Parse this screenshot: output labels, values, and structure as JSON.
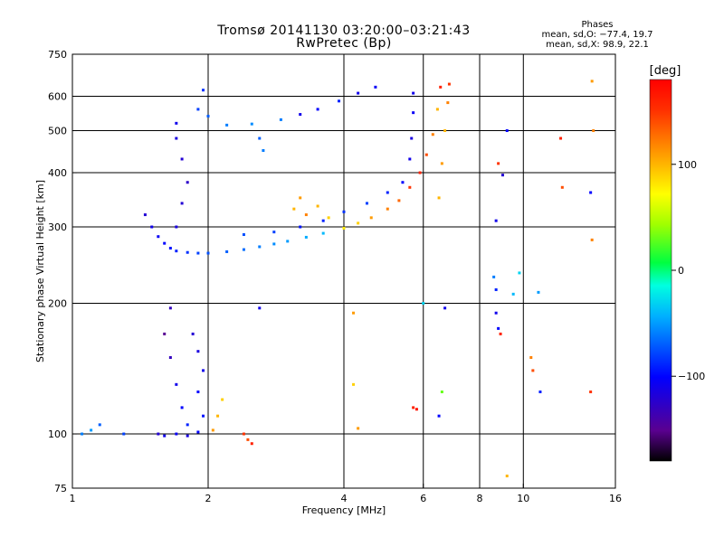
{
  "header": {
    "title_line1": "Tromsø 20141130 03:20:00–03:21:43",
    "title_line2": "RwPretec (Bp)",
    "phases_heading": "Phases",
    "phases_o": "mean, sd,O: −77.4, 19.7",
    "phases_x": "mean, sd,X:  98.9, 22.1"
  },
  "colorbar": {
    "label": "[deg]",
    "ticks": [
      {
        "value": 100,
        "label": "100"
      },
      {
        "value": 0,
        "label": "0"
      },
      {
        "value": -100,
        "label": "−100"
      }
    ],
    "range": [
      -180,
      180
    ]
  },
  "chart_data": {
    "type": "scatter",
    "xlabel": "Frequency [MHz]",
    "ylabel": "Stationary phase Virtual Height [km]",
    "x_scale": "log",
    "y_scale": "log",
    "xlim": [
      1,
      16
    ],
    "ylim": [
      75,
      750
    ],
    "grid": true,
    "x_ticks": [
      {
        "value": 1,
        "label": "1"
      },
      {
        "value": 2,
        "label": "2"
      },
      {
        "value": 4,
        "label": "4"
      },
      {
        "value": 6,
        "label": "6"
      },
      {
        "value": 8,
        "label": "8"
      },
      {
        "value": 10,
        "label": "10"
      },
      {
        "value": 16,
        "label": "16"
      }
    ],
    "y_ticks": [
      {
        "value": 75,
        "label": "75"
      },
      {
        "value": 100,
        "label": "100"
      },
      {
        "value": 200,
        "label": "200"
      },
      {
        "value": 300,
        "label": "300"
      },
      {
        "value": 400,
        "label": "400"
      },
      {
        "value": 500,
        "label": "500"
      },
      {
        "value": 600,
        "label": "600"
      },
      {
        "value": 750,
        "label": "750"
      }
    ],
    "x_grid": [
      2,
      4,
      6,
      8,
      10
    ],
    "y_grid": [
      100,
      200,
      300,
      400,
      500,
      600
    ],
    "points": [
      {
        "x": 1.45,
        "y": 320,
        "phase": -120
      },
      {
        "x": 1.5,
        "y": 300,
        "phase": -110
      },
      {
        "x": 1.55,
        "y": 285,
        "phase": -105
      },
      {
        "x": 1.6,
        "y": 275,
        "phase": -100
      },
      {
        "x": 1.65,
        "y": 268,
        "phase": -95
      },
      {
        "x": 1.7,
        "y": 264,
        "phase": -90
      },
      {
        "x": 1.8,
        "y": 262,
        "phase": -85
      },
      {
        "x": 1.9,
        "y": 261,
        "phase": -80
      },
      {
        "x": 2.0,
        "y": 261,
        "phase": -75
      },
      {
        "x": 2.2,
        "y": 263,
        "phase": -70
      },
      {
        "x": 2.4,
        "y": 266,
        "phase": -65
      },
      {
        "x": 2.6,
        "y": 270,
        "phase": -60
      },
      {
        "x": 2.8,
        "y": 274,
        "phase": -55
      },
      {
        "x": 3.0,
        "y": 278,
        "phase": -50
      },
      {
        "x": 3.3,
        "y": 284,
        "phase": -45
      },
      {
        "x": 3.6,
        "y": 290,
        "phase": -40
      },
      {
        "x": 4.0,
        "y": 298,
        "phase": 80
      },
      {
        "x": 4.3,
        "y": 306,
        "phase": 90
      },
      {
        "x": 4.6,
        "y": 315,
        "phase": 110
      },
      {
        "x": 5.0,
        "y": 330,
        "phase": 120
      },
      {
        "x": 5.3,
        "y": 345,
        "phase": 130
      },
      {
        "x": 5.6,
        "y": 370,
        "phase": 150
      },
      {
        "x": 5.9,
        "y": 400,
        "phase": 160
      },
      {
        "x": 6.1,
        "y": 440,
        "phase": 140
      },
      {
        "x": 6.3,
        "y": 490,
        "phase": 120
      },
      {
        "x": 6.45,
        "y": 560,
        "phase": 100
      },
      {
        "x": 6.55,
        "y": 630,
        "phase": 160
      },
      {
        "x": 1.7,
        "y": 300,
        "phase": -115
      },
      {
        "x": 1.75,
        "y": 340,
        "phase": -120
      },
      {
        "x": 1.8,
        "y": 380,
        "phase": -125
      },
      {
        "x": 1.75,
        "y": 430,
        "phase": -120
      },
      {
        "x": 1.7,
        "y": 480,
        "phase": -115
      },
      {
        "x": 1.7,
        "y": 520,
        "phase": -110
      },
      {
        "x": 1.9,
        "y": 560,
        "phase": -80
      },
      {
        "x": 1.95,
        "y": 620,
        "phase": -85
      },
      {
        "x": 2.0,
        "y": 540,
        "phase": -70
      },
      {
        "x": 2.2,
        "y": 515,
        "phase": -60
      },
      {
        "x": 2.5,
        "y": 518,
        "phase": -55
      },
      {
        "x": 2.9,
        "y": 530,
        "phase": -60
      },
      {
        "x": 3.2,
        "y": 545,
        "phase": -110
      },
      {
        "x": 3.5,
        "y": 560,
        "phase": -100
      },
      {
        "x": 3.9,
        "y": 585,
        "phase": -90
      },
      {
        "x": 4.3,
        "y": 610,
        "phase": -110
      },
      {
        "x": 4.7,
        "y": 630,
        "phase": -105
      },
      {
        "x": 5.7,
        "y": 610,
        "phase": -110
      },
      {
        "x": 5.7,
        "y": 550,
        "phase": -105
      },
      {
        "x": 5.65,
        "y": 480,
        "phase": -115
      },
      {
        "x": 5.6,
        "y": 430,
        "phase": -110
      },
      {
        "x": 5.4,
        "y": 380,
        "phase": -100
      },
      {
        "x": 5.0,
        "y": 360,
        "phase": -90
      },
      {
        "x": 4.5,
        "y": 340,
        "phase": -80
      },
      {
        "x": 4.0,
        "y": 325,
        "phase": -85
      },
      {
        "x": 3.6,
        "y": 310,
        "phase": -90
      },
      {
        "x": 3.2,
        "y": 300,
        "phase": -95
      },
      {
        "x": 2.8,
        "y": 292,
        "phase": -80
      },
      {
        "x": 2.4,
        "y": 288,
        "phase": -75
      },
      {
        "x": 3.1,
        "y": 330,
        "phase": 100
      },
      {
        "x": 3.2,
        "y": 350,
        "phase": 110
      },
      {
        "x": 3.3,
        "y": 320,
        "phase": 120
      },
      {
        "x": 3.5,
        "y": 335,
        "phase": 100
      },
      {
        "x": 3.7,
        "y": 315,
        "phase": 90
      },
      {
        "x": 6.5,
        "y": 350,
        "phase": 100
      },
      {
        "x": 6.6,
        "y": 420,
        "phase": 110
      },
      {
        "x": 6.7,
        "y": 500,
        "phase": 100
      },
      {
        "x": 6.8,
        "y": 580,
        "phase": 120
      },
      {
        "x": 6.85,
        "y": 640,
        "phase": 150
      },
      {
        "x": 2.6,
        "y": 480,
        "phase": -70
      },
      {
        "x": 2.65,
        "y": 450,
        "phase": -60
      },
      {
        "x": 1.6,
        "y": 170,
        "phase": -150
      },
      {
        "x": 1.65,
        "y": 150,
        "phase": -130
      },
      {
        "x": 1.7,
        "y": 130,
        "phase": -110
      },
      {
        "x": 1.75,
        "y": 115,
        "phase": -100
      },
      {
        "x": 1.8,
        "y": 105,
        "phase": -90
      },
      {
        "x": 1.85,
        "y": 170,
        "phase": -120
      },
      {
        "x": 1.9,
        "y": 155,
        "phase": -115
      },
      {
        "x": 1.95,
        "y": 140,
        "phase": -110
      },
      {
        "x": 1.9,
        "y": 125,
        "phase": -100
      },
      {
        "x": 1.95,
        "y": 110,
        "phase": -95
      },
      {
        "x": 1.65,
        "y": 195,
        "phase": -130
      },
      {
        "x": 1.55,
        "y": 100,
        "phase": -120
      },
      {
        "x": 1.6,
        "y": 99,
        "phase": -110
      },
      {
        "x": 1.7,
        "y": 100,
        "phase": -105
      },
      {
        "x": 1.8,
        "y": 99,
        "phase": -115
      },
      {
        "x": 1.9,
        "y": 101,
        "phase": -100
      },
      {
        "x": 1.05,
        "y": 100,
        "phase": -60
      },
      {
        "x": 1.1,
        "y": 102,
        "phase": -50
      },
      {
        "x": 1.15,
        "y": 105,
        "phase": -70
      },
      {
        "x": 1.3,
        "y": 100,
        "phase": -80
      },
      {
        "x": 2.4,
        "y": 100,
        "phase": 150
      },
      {
        "x": 2.45,
        "y": 97,
        "phase": 140
      },
      {
        "x": 2.5,
        "y": 95,
        "phase": 160
      },
      {
        "x": 2.05,
        "y": 102,
        "phase": 110
      },
      {
        "x": 2.1,
        "y": 110,
        "phase": 100
      },
      {
        "x": 2.15,
        "y": 120,
        "phase": 90
      },
      {
        "x": 2.6,
        "y": 195,
        "phase": -110
      },
      {
        "x": 4.2,
        "y": 190,
        "phase": 110
      },
      {
        "x": 4.2,
        "y": 130,
        "phase": 90
      },
      {
        "x": 4.3,
        "y": 103,
        "phase": 110
      },
      {
        "x": 5.7,
        "y": 115,
        "phase": 160
      },
      {
        "x": 5.8,
        "y": 114,
        "phase": 170
      },
      {
        "x": 6.0,
        "y": 200,
        "phase": -30
      },
      {
        "x": 6.6,
        "y": 125,
        "phase": 30
      },
      {
        "x": 6.7,
        "y": 195,
        "phase": -110
      },
      {
        "x": 6.5,
        "y": 110,
        "phase": -100
      },
      {
        "x": 8.7,
        "y": 190,
        "phase": -110
      },
      {
        "x": 8.8,
        "y": 175,
        "phase": -100
      },
      {
        "x": 8.9,
        "y": 170,
        "phase": 160
      },
      {
        "x": 8.6,
        "y": 230,
        "phase": -60
      },
      {
        "x": 8.7,
        "y": 215,
        "phase": -90
      },
      {
        "x": 8.7,
        "y": 310,
        "phase": -110
      },
      {
        "x": 9.0,
        "y": 395,
        "phase": -120
      },
      {
        "x": 9.2,
        "y": 500,
        "phase": -100
      },
      {
        "x": 8.8,
        "y": 420,
        "phase": 150
      },
      {
        "x": 9.5,
        "y": 210,
        "phase": -40
      },
      {
        "x": 9.8,
        "y": 235,
        "phase": -30
      },
      {
        "x": 10.8,
        "y": 212,
        "phase": -50
      },
      {
        "x": 10.5,
        "y": 140,
        "phase": 140
      },
      {
        "x": 10.4,
        "y": 150,
        "phase": 120
      },
      {
        "x": 9.2,
        "y": 80,
        "phase": 100
      },
      {
        "x": 12.1,
        "y": 480,
        "phase": 160
      },
      {
        "x": 12.2,
        "y": 370,
        "phase": 140
      },
      {
        "x": 10.9,
        "y": 125,
        "phase": -90
      },
      {
        "x": 14.2,
        "y": 650,
        "phase": 110
      },
      {
        "x": 14.3,
        "y": 500,
        "phase": 120
      },
      {
        "x": 14.1,
        "y": 360,
        "phase": -100
      },
      {
        "x": 14.2,
        "y": 280,
        "phase": 120
      },
      {
        "x": 14.1,
        "y": 125,
        "phase": 150
      }
    ]
  }
}
